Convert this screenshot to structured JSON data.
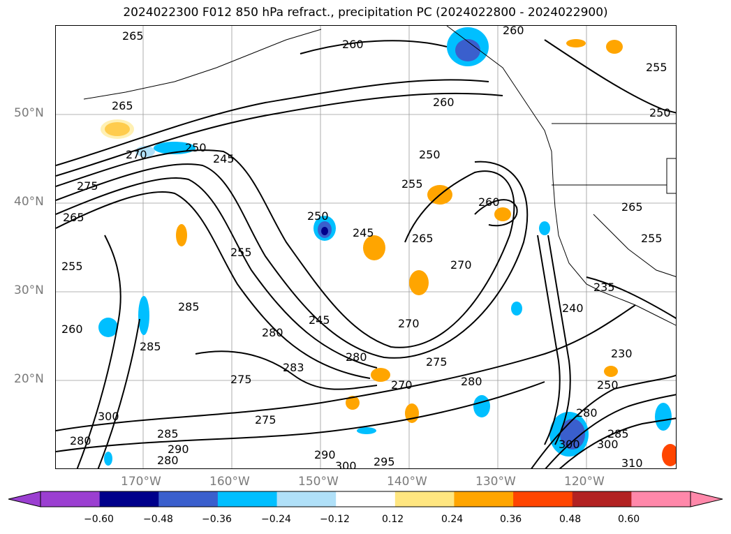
{
  "title": "2024022300 F012 850 hPa refract., precipitation PC (2024022800 - 2024022900)",
  "lat_labels": [
    "50°N",
    "40°N",
    "30°N",
    "20°N"
  ],
  "lon_labels": [
    "170°W",
    "160°W",
    "150°W",
    "140°W",
    "130°W",
    "120°W"
  ],
  "colorbar": {
    "ticks": [
      "−0.60",
      "−0.48",
      "−0.36",
      "−0.24",
      "−0.12",
      "0.12",
      "0.24",
      "0.36",
      "0.48",
      "0.60"
    ],
    "colors": [
      "#9b3fd1",
      "#00008b",
      "#3a5fcd",
      "#00bfff",
      "#b0e0f8",
      "#ffffff",
      "#ffe680",
      "#ffa500",
      "#ff4500",
      "#b22222",
      "#ff88aa"
    ]
  },
  "contour_labels": [
    "265",
    "260",
    "260",
    "255",
    "265",
    "260",
    "250",
    "250",
    "245",
    "250",
    "255",
    "260",
    "275",
    "265",
    "270",
    "245",
    "255",
    "265",
    "250",
    "265",
    "255",
    "255",
    "235",
    "260",
    "270",
    "270",
    "285",
    "245",
    "280",
    "280",
    "240",
    "285",
    "275",
    "275",
    "230",
    "283",
    "280",
    "270",
    "280",
    "250",
    "285",
    "275",
    "290",
    "295",
    "300",
    "310",
    "280",
    "300",
    "300",
    "280",
    "285",
    "290",
    "300"
  ]
}
